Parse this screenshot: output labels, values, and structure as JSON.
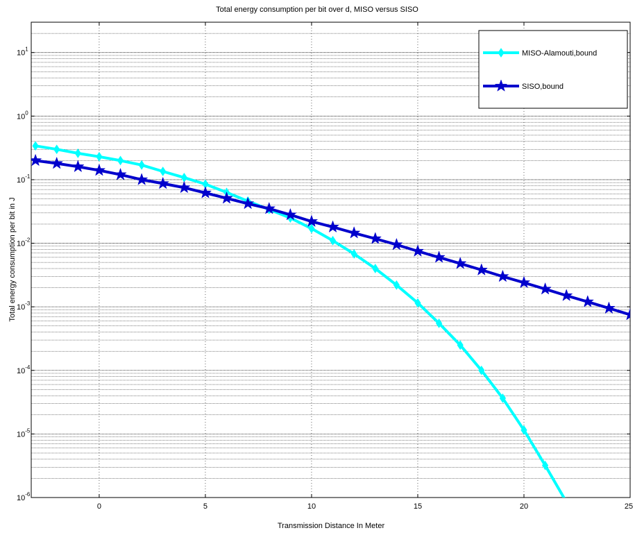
{
  "chart_data": {
    "type": "line",
    "title": "Total energy consumption per bit over d, MISO versus SISO",
    "xlabel": "Transmission Distance In Meter",
    "ylabel": "Total energy consumption per bit in J",
    "xlim": [
      -3.2,
      25
    ],
    "ylim": [
      1e-06,
      30
    ],
    "yscale": "log",
    "grid": true,
    "legend_position": "top-right",
    "x_ticks": [
      0,
      5,
      10,
      15,
      20,
      25
    ],
    "y_ticks": [
      {
        "value": 1e-06,
        "base": "10",
        "exp": "-6"
      },
      {
        "value": 1e-05,
        "base": "10",
        "exp": "-5"
      },
      {
        "value": 0.0001,
        "base": "10",
        "exp": "-4"
      },
      {
        "value": 0.001,
        "base": "10",
        "exp": "-3"
      },
      {
        "value": 0.01,
        "base": "10",
        "exp": "-2"
      },
      {
        "value": 0.1,
        "base": "10",
        "exp": "-1"
      },
      {
        "value": 1,
        "base": "10",
        "exp": "0"
      },
      {
        "value": 10,
        "base": "10",
        "exp": "1"
      }
    ],
    "series": [
      {
        "name": "MISO-Alamouti,bound",
        "color": "#00FFFF",
        "marker": "diamond",
        "x": [
          -3,
          -2,
          -1,
          0,
          1,
          2,
          3,
          4,
          5,
          6,
          7,
          8,
          9,
          10,
          11,
          12,
          13,
          14,
          15,
          16,
          17,
          18,
          19,
          20,
          21,
          22
        ],
        "y": [
          0.34,
          0.3,
          0.26,
          0.23,
          0.2,
          0.17,
          0.135,
          0.108,
          0.085,
          0.063,
          0.046,
          0.034,
          0.025,
          0.017,
          0.011,
          0.0068,
          0.004,
          0.0022,
          0.00115,
          0.00055,
          0.00025,
          0.0001,
          3.65e-05,
          1.15e-05,
          3.2e-06,
          8.5e-07
        ]
      },
      {
        "name": "SISO,bound",
        "color": "#0000CC",
        "marker": "star",
        "x": [
          -3,
          -2,
          -1,
          0,
          1,
          2,
          3,
          4,
          5,
          6,
          7,
          8,
          9,
          10,
          11,
          12,
          13,
          14,
          15,
          16,
          17,
          18,
          19,
          20,
          21,
          22,
          23,
          24,
          25
        ],
        "y": [
          0.2,
          0.18,
          0.16,
          0.14,
          0.12,
          0.1,
          0.087,
          0.075,
          0.062,
          0.051,
          0.042,
          0.035,
          0.028,
          0.022,
          0.018,
          0.0145,
          0.0118,
          0.0095,
          0.0075,
          0.006,
          0.0048,
          0.0038,
          0.003,
          0.0024,
          0.0019,
          0.0015,
          0.0012,
          0.00095,
          0.00075
        ]
      }
    ]
  }
}
